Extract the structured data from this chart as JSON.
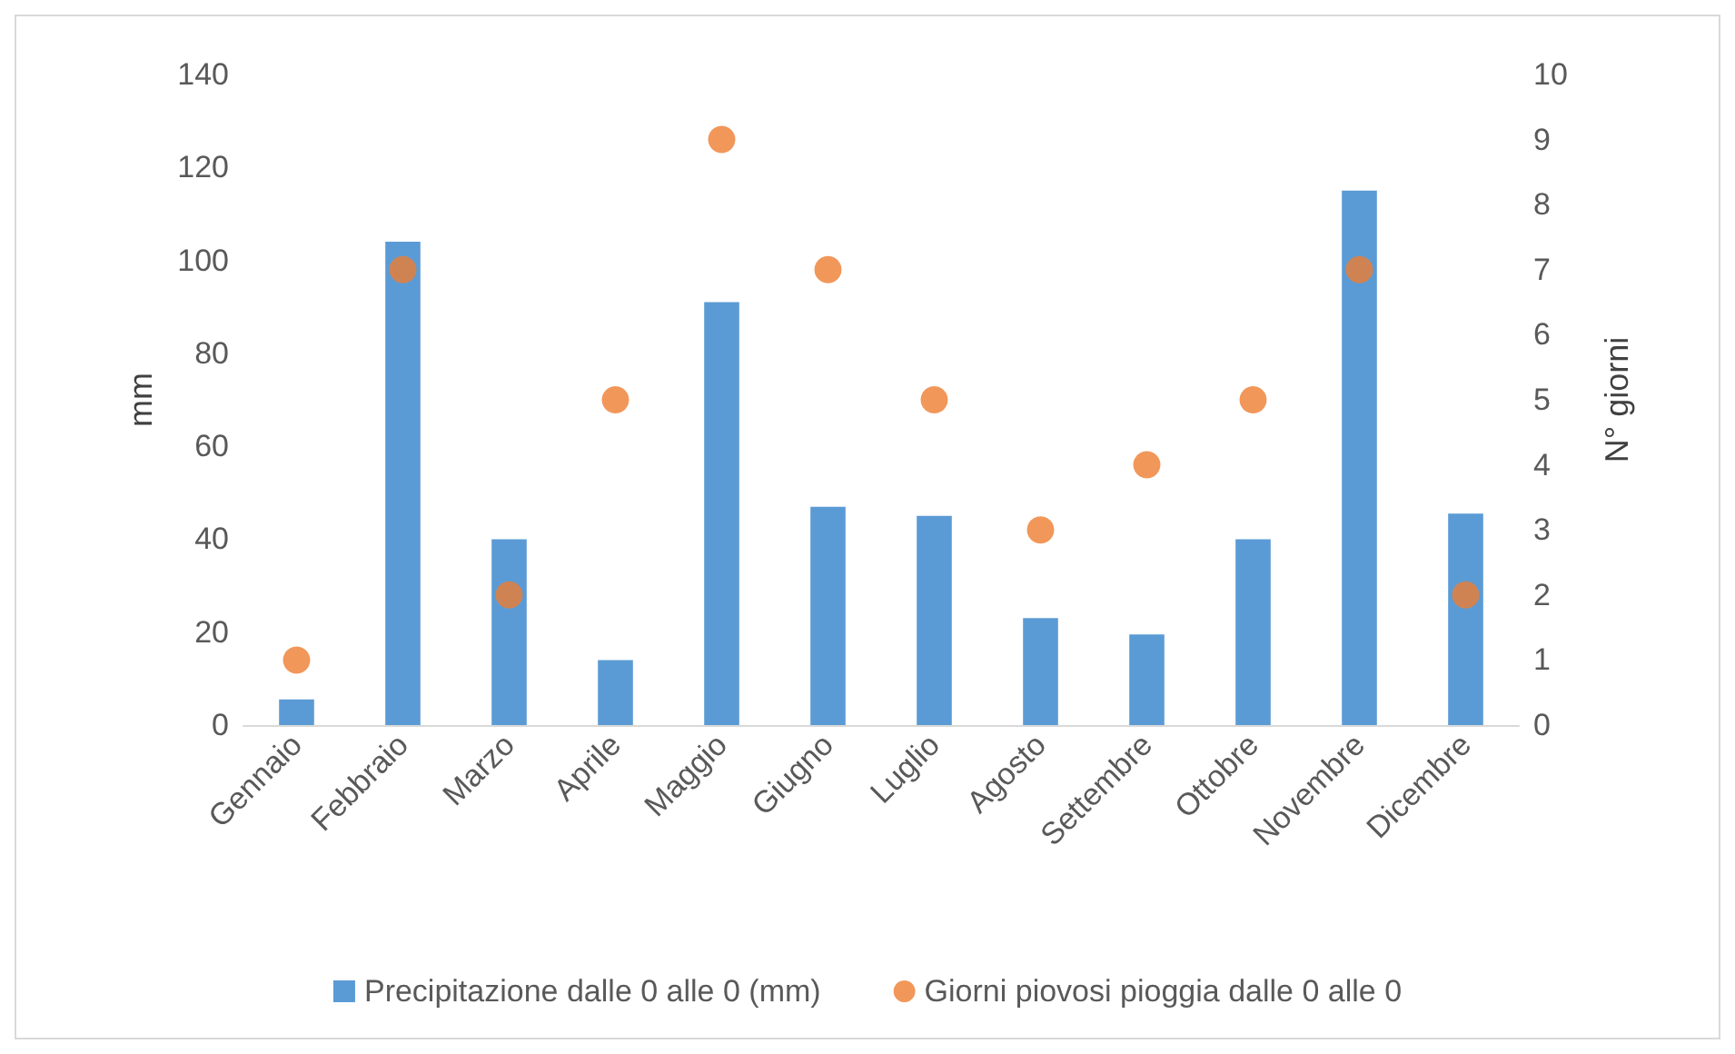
{
  "chart_data": {
    "type": "bar",
    "ylabel": "mm",
    "y2label": "N° giorni",
    "categories": [
      "Gennaio",
      "Febbraio",
      "Marzo",
      "Aprile",
      "Maggio",
      "Giugno",
      "Luglio",
      "Agosto",
      "Settembre",
      "Ottobre",
      "Novembre",
      "Dicembre"
    ],
    "series": [
      {
        "name": "Precipitazione dalle 0 alle 0 (mm)",
        "color": "#5b9bd5",
        "values": [
          5.5,
          104,
          40,
          14,
          91,
          47,
          45,
          23,
          19.5,
          40,
          115,
          45.5
        ]
      },
      {
        "name": "Giorni piovosi pioggia dalle 0 alle 0",
        "type": "scatter",
        "axis": "y2",
        "color": "#ed7d31",
        "marker": "circle",
        "values": [
          1,
          7,
          2,
          5,
          9,
          7,
          5,
          3,
          4,
          5,
          7,
          2
        ]
      }
    ],
    "ylim": [
      0,
      140
    ],
    "yticks": [
      0,
      20,
      40,
      60,
      80,
      100,
      120,
      140
    ],
    "y2lim": [
      0,
      10
    ],
    "y2ticks": [
      0,
      1,
      2,
      3,
      4,
      5,
      6,
      7,
      8,
      9,
      10
    ],
    "grid": false,
    "legend": "bottom"
  }
}
